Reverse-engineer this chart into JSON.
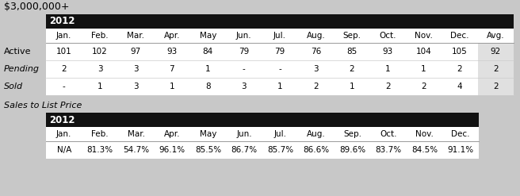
{
  "title": "$3,000,000+",
  "year": "2012",
  "months": [
    "Jan.",
    "Feb.",
    "Mar.",
    "Apr.",
    "May",
    "Jun.",
    "Jul.",
    "Aug.",
    "Sep.",
    "Oct.",
    "Nov.",
    "Dec.",
    "Avg."
  ],
  "months_short": [
    "Jan.",
    "Feb.",
    "Mar.",
    "Apr.",
    "May",
    "Jun.",
    "Jul.",
    "Aug.",
    "Sep.",
    "Oct.",
    "Nov.",
    "Dec."
  ],
  "row_labels": [
    "Active",
    "Pending",
    "Sold"
  ],
  "active": [
    "101",
    "102",
    "97",
    "93",
    "84",
    "79",
    "79",
    "76",
    "85",
    "93",
    "104",
    "105",
    "92"
  ],
  "pending": [
    "2",
    "3",
    "3",
    "7",
    "1",
    "-",
    "-",
    "3",
    "2",
    "1",
    "1",
    "2",
    "2"
  ],
  "sold": [
    "-",
    "1",
    "3",
    "1",
    "8",
    "3",
    "1",
    "2",
    "1",
    "2",
    "2",
    "4",
    "2"
  ],
  "sales_to_list_label": "Sales to List Price",
  "sales_values": [
    "N/A",
    "81.3%",
    "54.7%",
    "96.1%",
    "85.5%",
    "86.7%",
    "85.7%",
    "86.6%",
    "89.6%",
    "83.7%",
    "84.5%",
    "91.1%"
  ],
  "header_bg": "#111111",
  "header_fg": "#ffffff",
  "bg_color": "#c8c8c8",
  "avg_bg": "#e0e0e0",
  "white": "#ffffff",
  "border_color": "#999999",
  "title_fontsize": 9,
  "header_fontsize": 8.5,
  "col_fontsize": 7.5,
  "data_fontsize": 7.5,
  "label_fontsize": 8,
  "sales_label_fontsize": 8
}
